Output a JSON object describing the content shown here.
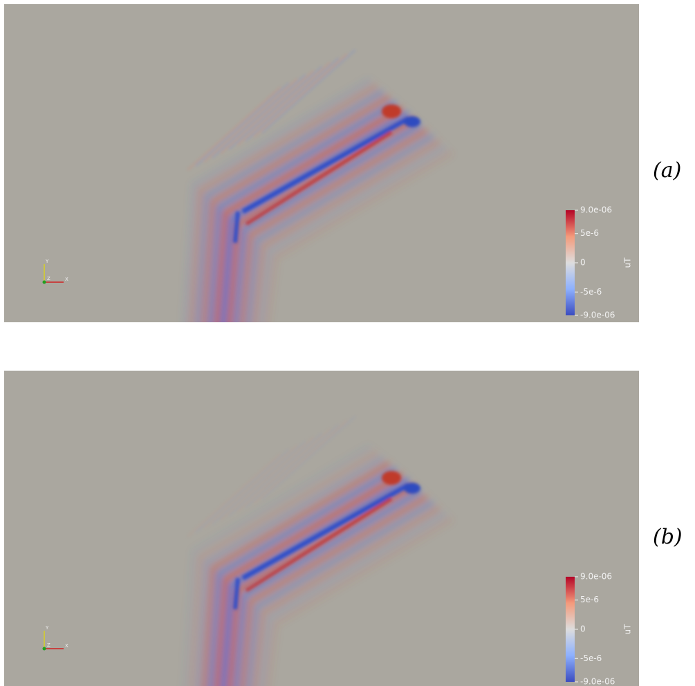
{
  "panels": [
    {
      "label": "(a)",
      "colorbar": {
        "title": "uT",
        "ticks": [
          "9.0e-06",
          "5e-6",
          "0",
          "-5e-6",
          "-9.0e-06"
        ]
      },
      "triad": {
        "x": "X",
        "y": "Y",
        "z": "Z"
      }
    },
    {
      "label": "(b)",
      "colorbar": {
        "title": "uT",
        "ticks": [
          "9.0e-06",
          "5e-6",
          "0",
          "-5e-6",
          "-9.0e-06"
        ]
      },
      "triad": {
        "x": "X",
        "y": "Y",
        "z": "Z"
      }
    }
  ]
}
